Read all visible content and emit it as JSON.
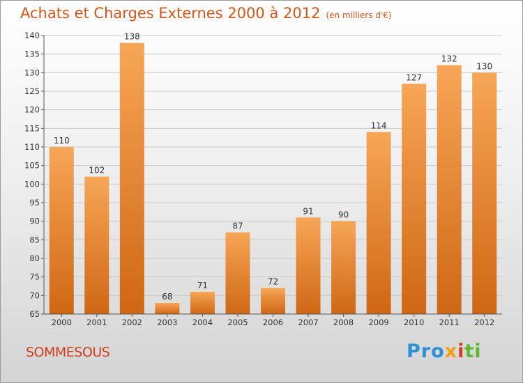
{
  "header": {
    "title": "Achats et Charges Externes 2000 à 2012",
    "unit": "(en milliers d'€)"
  },
  "footer": {
    "city": "SOMMESOUS",
    "logo_parts": [
      "Pro",
      "x",
      "i",
      "ti"
    ]
  },
  "colors": {
    "bar_top": "#f7a657",
    "bar_bottom": "#cf6714",
    "title": "#d25519",
    "city": "#d23c1e"
  },
  "chart_data": {
    "type": "bar",
    "title": "Achats et Charges Externes 2000 à 2012",
    "subtitle": "(en milliers d'€)",
    "categories": [
      "2000",
      "2001",
      "2002",
      "2003",
      "2004",
      "2005",
      "2006",
      "2007",
      "2008",
      "2009",
      "2010",
      "2011",
      "2012"
    ],
    "values": [
      110,
      102,
      138,
      68,
      71,
      87,
      72,
      91,
      90,
      114,
      127,
      132,
      130
    ],
    "ylim": [
      65,
      140
    ],
    "yticks": [
      65,
      70,
      75,
      80,
      85,
      90,
      95,
      100,
      105,
      110,
      115,
      120,
      125,
      130,
      135,
      140
    ],
    "grid": true,
    "legend": "none"
  }
}
